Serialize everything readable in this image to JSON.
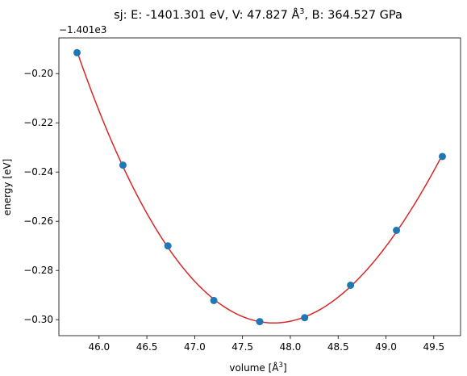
{
  "chart_data": {
    "type": "scatter",
    "title_prefix": "sj: E: -1401.301 eV, V: 47.827 Å",
    "title_sup": "3",
    "title_suffix": ", B: 364.527 GPa",
    "xlabel_prefix": "volume [Å",
    "xlabel_sup": "3",
    "xlabel_suffix": "]",
    "ylabel": "energy [eV]",
    "y_offset_label": "−1.401e3",
    "xlim": [
      45.58,
      49.78
    ],
    "ylim": [
      -0.3065,
      -0.1855
    ],
    "x_ticks": [
      46.0,
      46.5,
      47.0,
      47.5,
      48.0,
      48.5,
      49.0,
      49.5
    ],
    "x_tick_labels": [
      "46.0",
      "46.5",
      "47.0",
      "47.5",
      "48.0",
      "48.5",
      "49.0",
      "49.5"
    ],
    "y_ticks": [
      -0.3,
      -0.28,
      -0.26,
      -0.24,
      -0.22,
      -0.2
    ],
    "y_tick_labels": [
      "−0.30",
      "−0.28",
      "−0.26",
      "−0.24",
      "−0.22",
      "−0.20"
    ],
    "grid": false,
    "series": [
      {
        "kind": "points",
        "color": "#1f77b4",
        "x": [
          45.77,
          46.25,
          46.72,
          47.2,
          47.68,
          48.15,
          48.63,
          49.11,
          49.59
        ],
        "y": [
          -0.1915,
          -0.2372,
          -0.27,
          -0.2922,
          -0.3008,
          -0.2992,
          -0.286,
          -0.2637,
          -0.2337
        ]
      },
      {
        "kind": "fit_curve",
        "color": "#d62728",
        "min_x": 47.827,
        "min_y": -0.3013,
        "x": [
          45.77,
          46.0,
          46.25,
          46.5,
          46.72,
          47.0,
          47.2,
          47.4,
          47.68,
          47.827,
          48.0,
          48.15,
          48.4,
          48.63,
          48.9,
          49.11,
          49.35,
          49.59
        ],
        "y": [
          -0.1915,
          -0.2155,
          -0.2372,
          -0.2556,
          -0.27,
          -0.285,
          -0.2922,
          -0.2974,
          -0.3008,
          -0.3013,
          -0.3009,
          -0.2992,
          -0.2942,
          -0.286,
          -0.2745,
          -0.2637,
          -0.2497,
          -0.2337
        ]
      }
    ]
  }
}
